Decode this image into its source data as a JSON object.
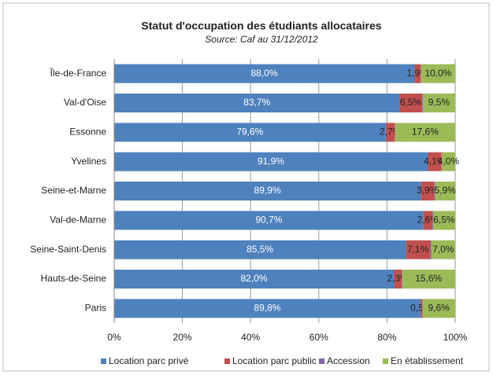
{
  "chart_data": {
    "type": "stacked-barh",
    "title": "Statut d'occupation des étudiants allocataires",
    "subtitle": "Source: Caf au 31/12/2012",
    "categories": [
      "Île-de-France",
      "Val-d'Oise",
      "Essonne",
      "Yvelines",
      "Seine-et-Marne",
      "Val-de-Marne",
      "Seine-Saint-Denis",
      "Hauts-de-Seine",
      "Paris"
    ],
    "series": [
      {
        "name": "Location parc privé",
        "color": "#4f81bd",
        "values": [
          88.0,
          83.7,
          79.6,
          91.9,
          89.9,
          90.7,
          85.5,
          82.0,
          89.8
        ],
        "value_labels": [
          "88,0%",
          "83,7%",
          "79,6%",
          "91,9%",
          "89,9%",
          "90,7%",
          "85,5%",
          "82,0%",
          "89,8%"
        ]
      },
      {
        "name": "Location parc public",
        "color": "#c0504d",
        "values": [
          1.9,
          6.5,
          2.7,
          4.1,
          3.9,
          2.6,
          7.1,
          2.3,
          0.5
        ],
        "value_labels": [
          "1,9%",
          "6,5%",
          "2,7%",
          "4,1%",
          "3,9%",
          "2,6%",
          "7,1%",
          "2,3%",
          "0,5%"
        ]
      },
      {
        "name": "Accession",
        "color": "#8064a2",
        "values": [
          0.1,
          0.3,
          0.1,
          0.0,
          0.3,
          0.2,
          0.4,
          0.1,
          0.1
        ]
      },
      {
        "name": "En établissement",
        "color": "#9bbb59",
        "values": [
          10.0,
          9.5,
          17.6,
          4.0,
          5.9,
          6.5,
          7.0,
          15.6,
          9.6
        ],
        "value_labels": [
          "10,0%",
          "9,5%",
          "17,6%",
          "4,0%",
          "5,9%",
          "6,5%",
          "7,0%",
          "15,6%",
          "9,6%"
        ]
      }
    ],
    "xlim": [
      0,
      100
    ],
    "xticks": [
      {
        "value": 0,
        "label": "0%"
      },
      {
        "value": 20,
        "label": "20%"
      },
      {
        "value": 40,
        "label": "40%"
      },
      {
        "value": 60,
        "label": "60%"
      },
      {
        "value": 80,
        "label": "80%"
      },
      {
        "value": 100,
        "label": "100%"
      }
    ],
    "grid": true,
    "legend": "bottom"
  }
}
